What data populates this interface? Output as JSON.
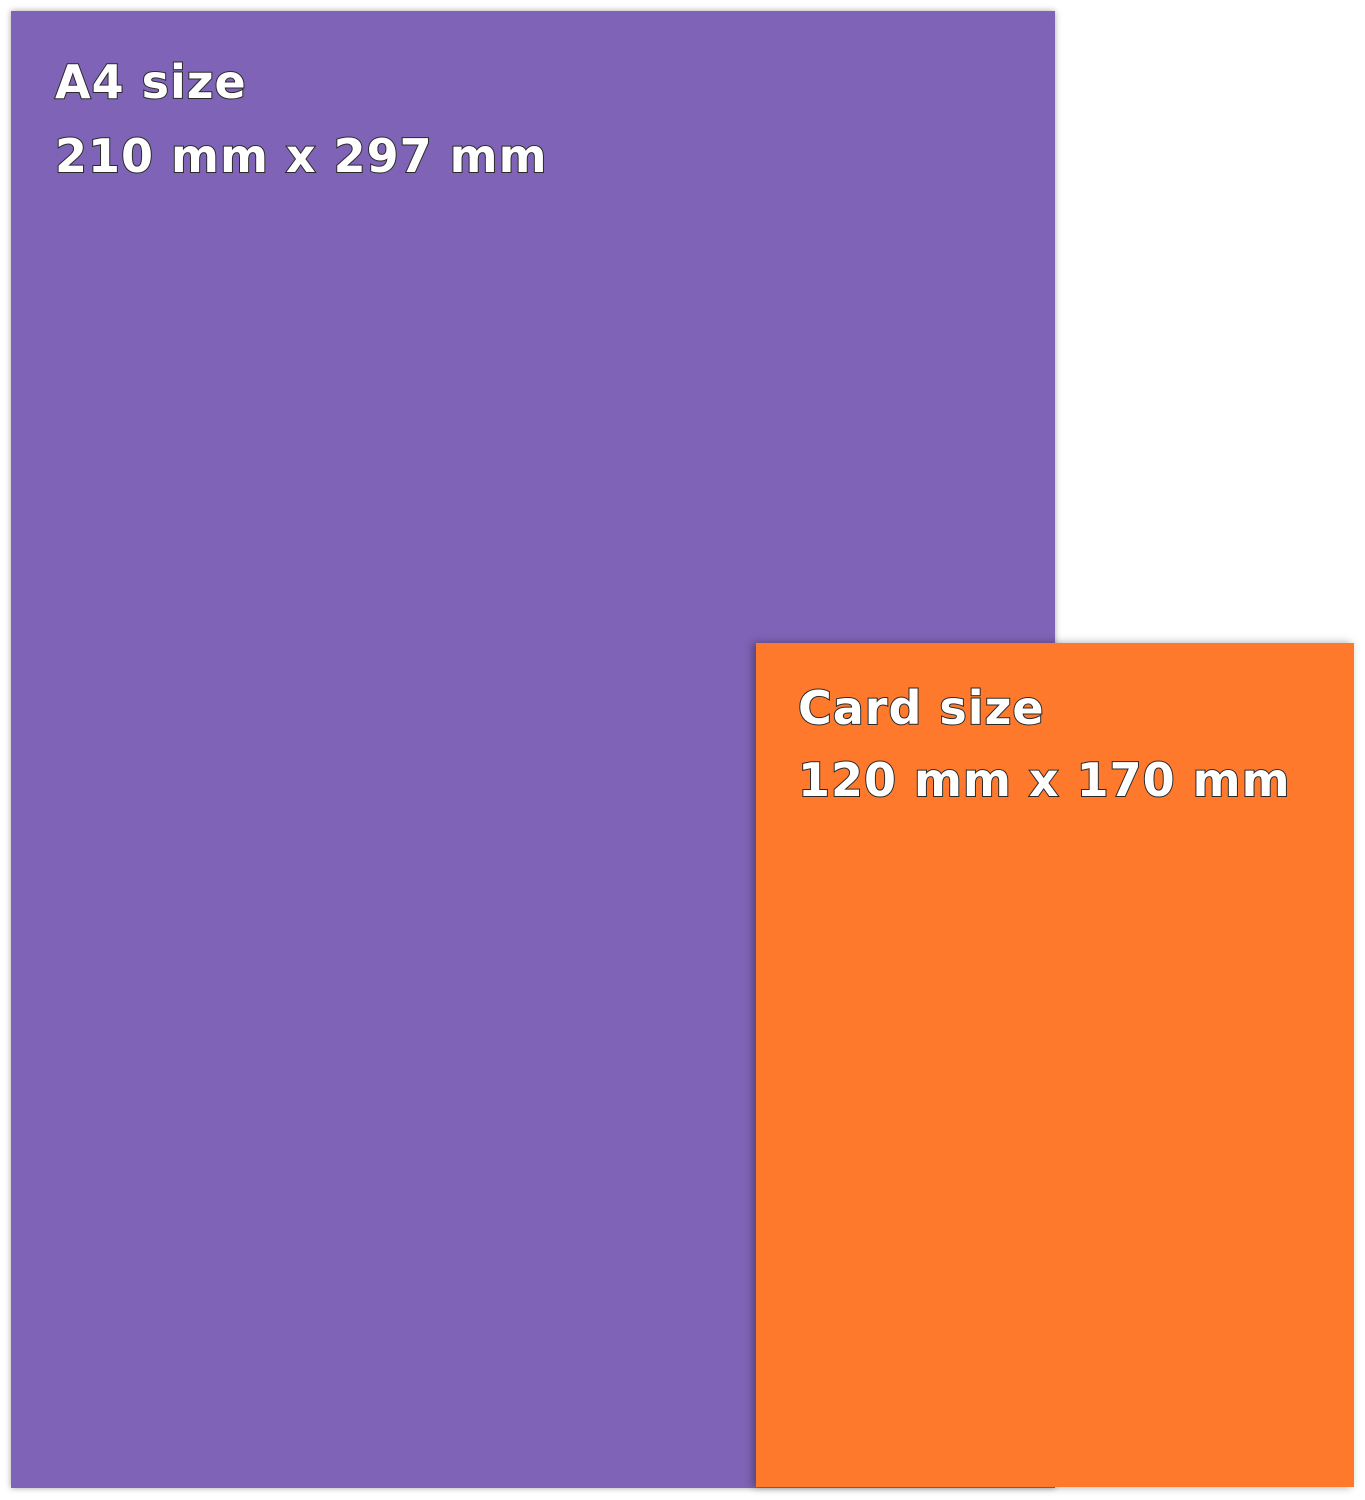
{
  "a4": {
    "title": "A4 size",
    "dimensions": "210 mm x 297 mm",
    "color": "#7E63B6"
  },
  "card": {
    "title": "Card size",
    "dimensions": "120 mm x 170 mm",
    "color": "#FE792C"
  }
}
